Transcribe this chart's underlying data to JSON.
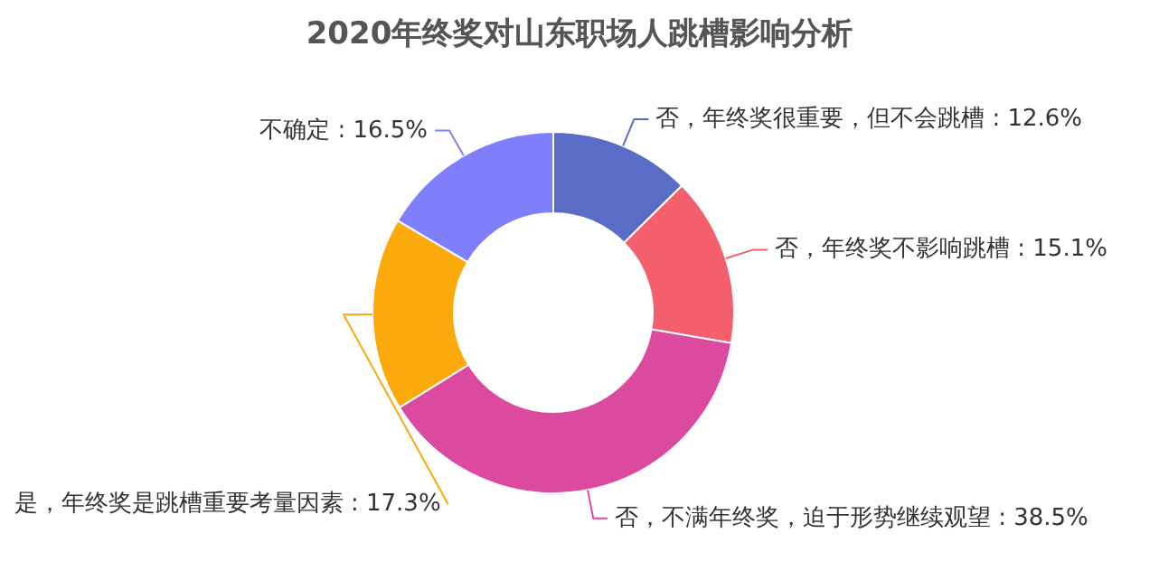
{
  "chart_data": {
    "type": "donut",
    "title": "2020年终奖对山东职场人跳槽影响分析",
    "categories": [
      "否，年终奖很重要，但不会跳槽",
      "否，年终奖不影响跳槽",
      "否，不满年终奖，迫于形势继续观望",
      "是，年终奖是跳槽重要考量因素",
      "不确定"
    ],
    "values": [
      12.6,
      15.1,
      38.5,
      17.3,
      16.5
    ],
    "value_labels": [
      ": 12.6%",
      ": 15.1%",
      ": 38.5%",
      ": 17.3%",
      ": 16.5%"
    ],
    "colors": [
      "#5a6dc6",
      "#f45f6e",
      "#dc4aa0",
      "#fcaa0b",
      "#7f7ffc"
    ]
  }
}
